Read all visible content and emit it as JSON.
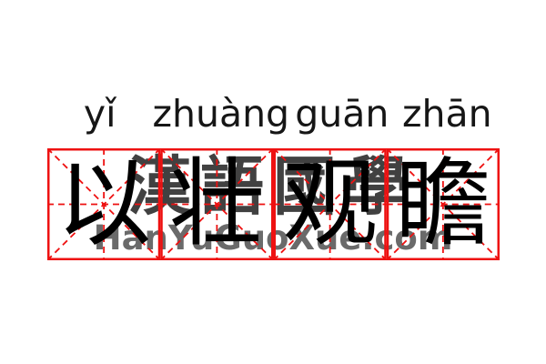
{
  "page": {
    "title": "以壮观瞻",
    "background_color": "#ffffff"
  },
  "pinyin": {
    "syllables": [
      "yǐ",
      "zhuàng",
      "guān",
      "zhān"
    ],
    "color": "#161616"
  },
  "characters": {
    "list": [
      "以",
      "壮",
      "观",
      "瞻"
    ],
    "color": "#000000"
  },
  "grid": {
    "type": "mi-zi-ge-practice-grid",
    "cells": 4,
    "line_color": "#ee1111",
    "border_style": "solid",
    "guide_style": "dashed"
  },
  "watermark": {
    "cjk_text": "漢語國學",
    "cjk_color": "#2d2d2d",
    "site_text": "HanYuGuoXue.com",
    "site_color": "#4a4a4a"
  }
}
